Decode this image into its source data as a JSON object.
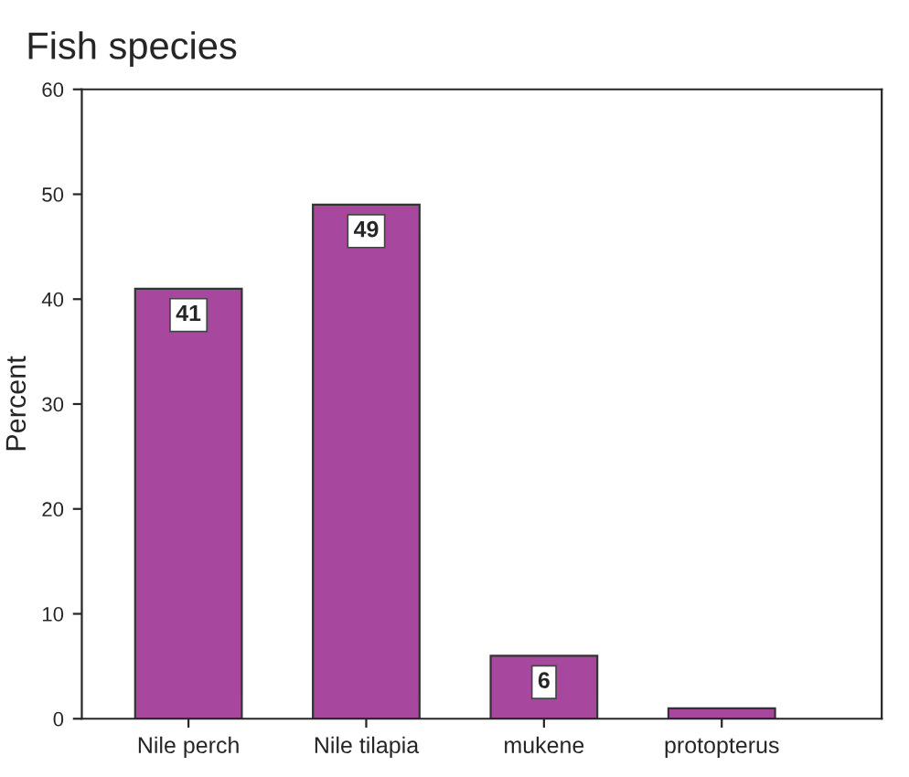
{
  "chart_data": {
    "type": "bar",
    "title": "Fish species",
    "ylabel": "Percent",
    "categories": [
      "Nile perch",
      "Nile tilapia",
      "mukene",
      "protopterus"
    ],
    "values": [
      41,
      49,
      6,
      1
    ],
    "value_labels": [
      "41",
      "49",
      "6",
      null
    ],
    "color": "#a8479e",
    "ylim": [
      0,
      60
    ],
    "yticks": [
      0,
      10,
      20,
      30,
      40,
      50,
      60
    ],
    "grid": false,
    "legend": false
  }
}
